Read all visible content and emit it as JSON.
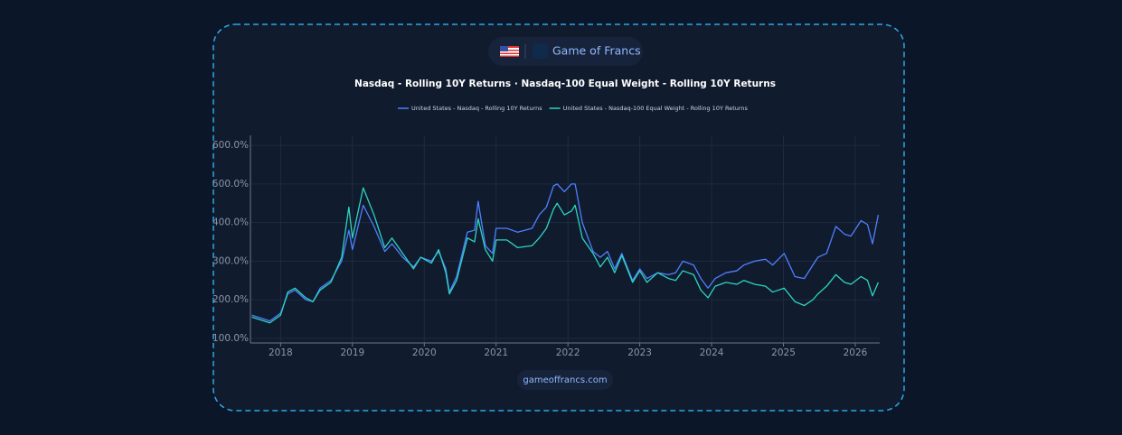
{
  "brand": "Game of Francs",
  "footer": "gameoffrancs.com",
  "chart_data": {
    "type": "line",
    "title": "Nasdaq - Rolling 10Y Returns · Nasdaq-100 Equal Weight - Rolling 10Y Returns",
    "x": [
      2017.6,
      2017.85,
      2018.0,
      2018.1,
      2018.2,
      2018.35,
      2018.45,
      2018.55,
      2018.7,
      2018.85,
      2018.95,
      2019.0,
      2019.15,
      2019.3,
      2019.45,
      2019.55,
      2019.7,
      2019.85,
      2019.95,
      2020.1,
      2020.2,
      2020.3,
      2020.35,
      2020.45,
      2020.6,
      2020.7,
      2020.75,
      2020.85,
      2020.95,
      2021.0,
      2021.15,
      2021.3,
      2021.5,
      2021.6,
      2021.7,
      2021.8,
      2021.85,
      2021.95,
      2022.05,
      2022.1,
      2022.2,
      2022.35,
      2022.45,
      2022.55,
      2022.65,
      2022.75,
      2022.9,
      2023.0,
      2023.1,
      2023.25,
      2023.4,
      2023.5,
      2023.6,
      2023.75,
      2023.85,
      2023.95,
      2024.05,
      2024.2,
      2024.35,
      2024.45,
      2024.6,
      2024.75,
      2024.85,
      2024.93,
      2025.01,
      2025.16,
      2025.29,
      2025.41,
      2025.48,
      2025.6,
      2025.73,
      2025.85,
      2025.94,
      2026.08,
      2026.17,
      2026.24,
      2026.32
    ],
    "series": [
      {
        "name": "United States - Nasdaq - Rolling 10Y Returns",
        "color": "#4f7fff",
        "values": [
          160,
          145,
          165,
          215,
          225,
          200,
          195,
          230,
          250,
          300,
          380,
          330,
          445,
          390,
          325,
          345,
          310,
          285,
          310,
          300,
          325,
          280,
          220,
          260,
          375,
          380,
          455,
          340,
          320,
          385,
          385,
          375,
          385,
          420,
          440,
          495,
          500,
          480,
          500,
          500,
          400,
          325,
          310,
          325,
          280,
          320,
          250,
          280,
          255,
          270,
          265,
          270,
          300,
          290,
          255,
          230,
          255,
          270,
          275,
          290,
          300,
          305,
          290,
          305,
          320,
          260,
          255,
          290,
          310,
          320,
          390,
          370,
          365,
          405,
          395,
          345,
          420
        ]
      },
      {
        "name": "United States - Nasdaq-100 Equal Weight - Rolling 10Y Returns",
        "color": "#2dd4bf",
        "values": [
          155,
          140,
          160,
          220,
          230,
          205,
          195,
          225,
          245,
          310,
          440,
          360,
          490,
          420,
          335,
          360,
          320,
          280,
          310,
          295,
          330,
          270,
          215,
          250,
          360,
          350,
          410,
          330,
          300,
          355,
          355,
          335,
          340,
          360,
          385,
          435,
          450,
          420,
          430,
          445,
          360,
          320,
          285,
          310,
          270,
          315,
          245,
          275,
          245,
          270,
          255,
          250,
          275,
          265,
          225,
          205,
          235,
          245,
          240,
          250,
          240,
          235,
          220,
          225,
          230,
          195,
          185,
          200,
          215,
          235,
          265,
          245,
          240,
          260,
          250,
          210,
          245
        ]
      }
    ],
    "xlim": [
      2017.58,
      2026.34
    ],
    "xticks": [
      2018,
      2019,
      2020,
      2021,
      2022,
      2023,
      2024,
      2025,
      2026
    ],
    "ylim": [
      88,
      626
    ],
    "yticks": [
      {
        "value": 100,
        "label": "100.0%"
      },
      {
        "value": 200,
        "label": "200.0%"
      },
      {
        "value": 300,
        "label": "300.0%"
      },
      {
        "value": 400,
        "label": "400.0%"
      },
      {
        "value": 500,
        "label": "500.0%"
      },
      {
        "value": 600,
        "label": "600.0%"
      }
    ],
    "grid": true
  }
}
